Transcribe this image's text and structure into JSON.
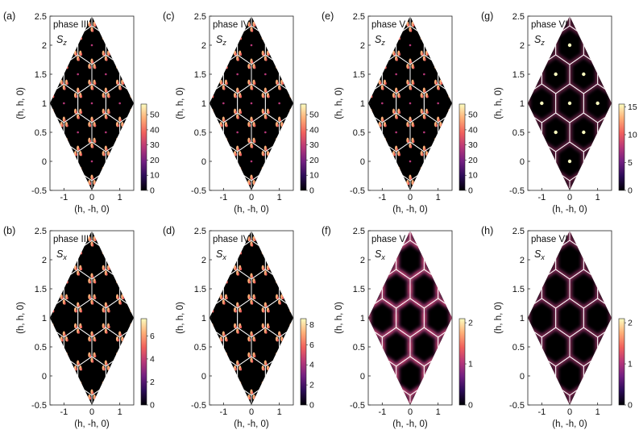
{
  "figure": {
    "x_axis_label": "(h, -h, 0)",
    "y_axis_label": "(h, h, 0)",
    "x_ticks": [
      "-1",
      "0",
      "1"
    ],
    "y_ticks": [
      "-0.5",
      "0",
      "0.5",
      "1",
      "1.5",
      "2",
      "2.5"
    ],
    "spin_symbol": "S"
  },
  "colors": {
    "background": "#000000",
    "grid_lines": "#ffffff",
    "colormap": [
      "#000004",
      "#2c0b57",
      "#721f81",
      "#b73779",
      "#f1605d",
      "#feae77",
      "#fcfdbf"
    ]
  },
  "chart_data": [
    {
      "type": "heatmap",
      "panel_label": "(a)",
      "title": "phase III",
      "component": "z",
      "xlabel": "(h, -h, 0)",
      "ylabel": "(h, h, 0)",
      "xlim": [
        -1.5,
        1.5
      ],
      "ylim": [
        -0.5,
        2.5
      ],
      "colorbar": {
        "min": 0,
        "max": 57,
        "ticks": [
          "0",
          "10",
          "20",
          "30",
          "40",
          "50"
        ]
      },
      "features": "sharp peaks near zone edges; weak spots at zone centers",
      "style": "sharp"
    },
    {
      "type": "heatmap",
      "panel_label": "(c)",
      "title": "phase IV",
      "component": "z",
      "xlabel": "(h, -h, 0)",
      "ylabel": "(h, h, 0)",
      "xlim": [
        -1.5,
        1.5
      ],
      "ylim": [
        -0.5,
        2.5
      ],
      "colorbar": {
        "min": 0,
        "max": 57,
        "ticks": [
          "0",
          "10",
          "20",
          "30",
          "40",
          "50"
        ]
      },
      "features": "sharp peaks near zone edges; weak spots at zone centers",
      "style": "sharp"
    },
    {
      "type": "heatmap",
      "panel_label": "(e)",
      "title": "phase V",
      "component": "z",
      "xlabel": "(h, -h, 0)",
      "ylabel": "(h, h, 0)",
      "xlim": [
        -1.5,
        1.5
      ],
      "ylim": [
        -0.5,
        2.5
      ],
      "colorbar": {
        "min": 0,
        "max": 57,
        "ticks": [
          "0",
          "10",
          "20",
          "30",
          "40",
          "50"
        ]
      },
      "features": "sharp peaks near zone edges; weak spots at zone centers",
      "style": "sharp"
    },
    {
      "type": "heatmap",
      "panel_label": "(g)",
      "title": "phase VI",
      "component": "z",
      "xlabel": "(h, -h, 0)",
      "ylabel": "(h, h, 0)",
      "xlim": [
        -1.5,
        1.5
      ],
      "ylim": [
        -0.5,
        2.5
      ],
      "colorbar": {
        "min": 0,
        "max": 15.5,
        "ticks": [
          "0",
          "5",
          "10",
          "15"
        ]
      },
      "features": "bright spots at zone centers with diffuse glow along zone edges",
      "style": "center"
    },
    {
      "type": "heatmap",
      "panel_label": "(b)",
      "title": "phase III",
      "component": "x",
      "xlabel": "(h, -h, 0)",
      "ylabel": "(h, h, 0)",
      "xlim": [
        -1.5,
        1.5
      ],
      "ylim": [
        -0.5,
        2.5
      ],
      "colorbar": {
        "min": 0,
        "max": 7.5,
        "ticks": [
          "0",
          "2",
          "4",
          "6"
        ]
      },
      "features": "sharp peaks near zone edges",
      "style": "sharp"
    },
    {
      "type": "heatmap",
      "panel_label": "(d)",
      "title": "phase IV",
      "component": "x",
      "xlabel": "(h, -h, 0)",
      "ylabel": "(h, h, 0)",
      "xlim": [
        -1.5,
        1.5
      ],
      "ylim": [
        -0.5,
        2.5
      ],
      "colorbar": {
        "min": 0,
        "max": 8.6,
        "ticks": [
          "0",
          "2",
          "4",
          "6",
          "8"
        ]
      },
      "features": "sharp peaks near zone edges",
      "style": "sharp"
    },
    {
      "type": "heatmap",
      "panel_label": "(f)",
      "title": "phase V",
      "component": "x",
      "xlabel": "(h, -h, 0)",
      "ylabel": "(h, h, 0)",
      "xlim": [
        -1.5,
        1.5
      ],
      "ylim": [
        -0.5,
        2.5
      ],
      "colorbar": {
        "min": 0,
        "max": 2.1,
        "ticks": [
          "0",
          "1",
          "2"
        ]
      },
      "features": "diffuse intensity along zone edges, brightest at zone corners",
      "style": "diffuse"
    },
    {
      "type": "heatmap",
      "panel_label": "(h)",
      "title": "phase VI",
      "component": "x",
      "xlabel": "(h, -h, 0)",
      "ylabel": "(h, h, 0)",
      "xlim": [
        -1.5,
        1.5
      ],
      "ylim": [
        -0.5,
        2.5
      ],
      "colorbar": {
        "min": 0,
        "max": 2.1,
        "ticks": [
          "0",
          "1",
          "2"
        ]
      },
      "features": "faint diffuse intensity along zone edges",
      "style": "faint"
    }
  ]
}
